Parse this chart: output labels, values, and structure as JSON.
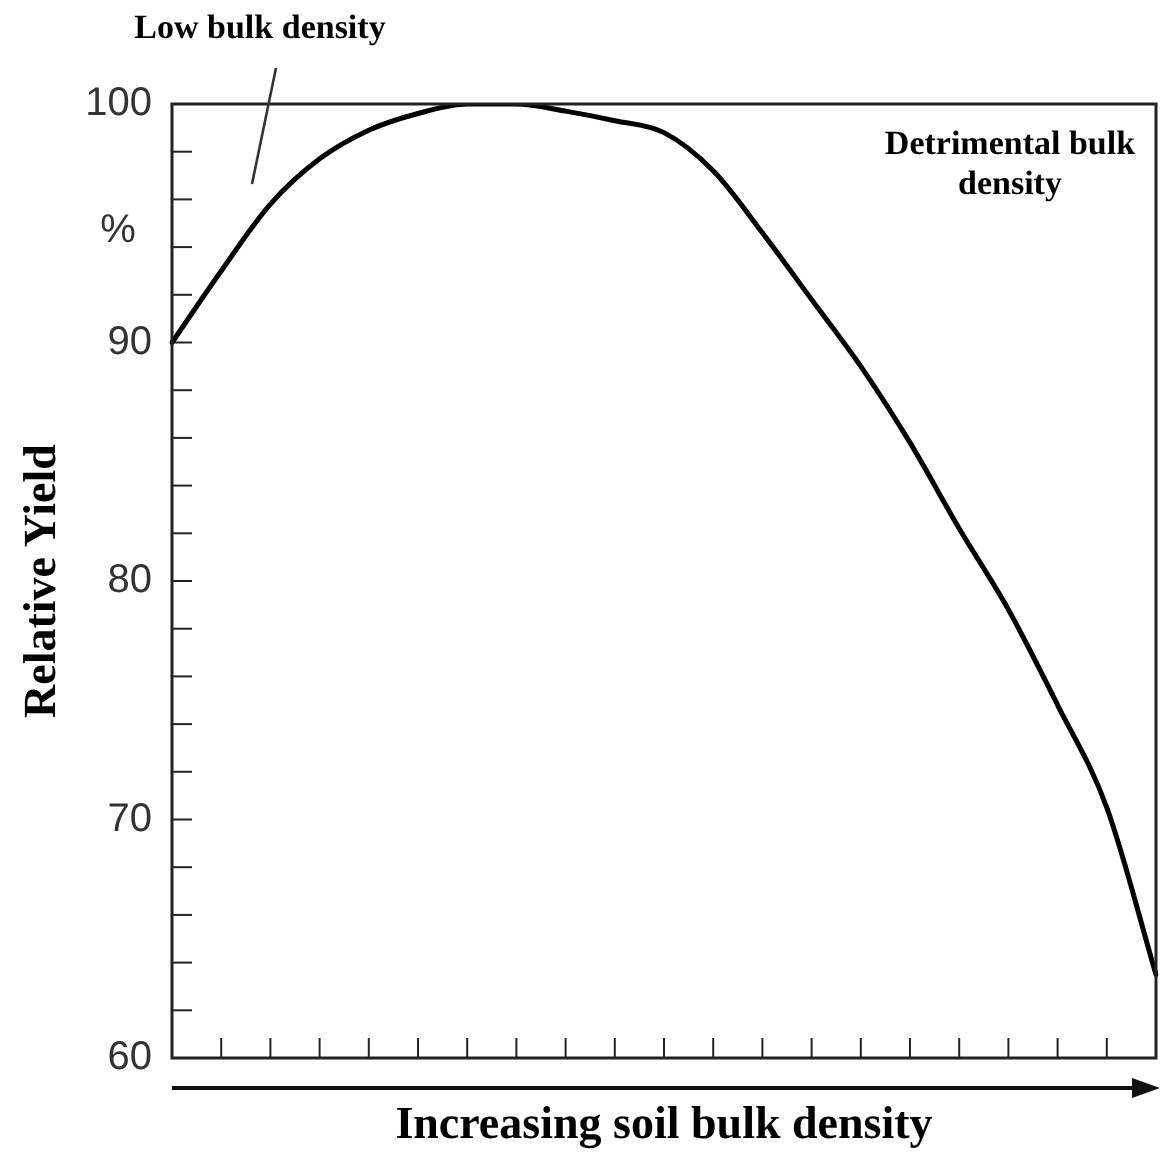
{
  "chart_data": {
    "type": "line",
    "xlabel": "Increasing soil bulk density",
    "ylabel": "Relative Yield",
    "annotations": [
      "Low bulk density",
      "Detrimental bulk density",
      "%"
    ],
    "categories": [
      null,
      null,
      null,
      null,
      null,
      null,
      null,
      null,
      null,
      null,
      null,
      null,
      null,
      null,
      null,
      null,
      null,
      null,
      null,
      null,
      null
    ],
    "values": [
      90,
      93,
      95.8,
      97.7,
      98.9,
      99.6,
      100,
      100,
      99.7,
      99.3,
      98.8,
      97.2,
      94.6,
      91.8,
      89,
      85.8,
      82.2,
      78.8,
      74.8,
      70.5,
      63.5
    ],
    "color": "#000000",
    "marker": "none",
    "line_style": "solid",
    "tick_labels": "y",
    "ylim": [
      60,
      100
    ],
    "yticks": [
      60,
      {
        "value": 62,
        "label": null
      },
      {
        "value": 64,
        "label": null
      },
      {
        "value": 66,
        "label": null
      },
      {
        "value": 68,
        "label": null
      },
      70,
      {
        "value": 72,
        "label": null
      },
      {
        "value": 74,
        "label": null
      },
      {
        "value": 76,
        "label": null
      },
      {
        "value": 78,
        "label": null
      },
      80,
      {
        "value": 82,
        "label": null
      },
      {
        "value": 84,
        "label": null
      },
      {
        "value": 86,
        "label": null
      },
      {
        "value": 88,
        "label": null
      },
      90,
      {
        "value": 92,
        "label": null
      },
      {
        "value": 94,
        "label": null
      },
      {
        "value": 96,
        "label": null
      },
      {
        "value": 98,
        "label": null
      },
      100
    ]
  }
}
